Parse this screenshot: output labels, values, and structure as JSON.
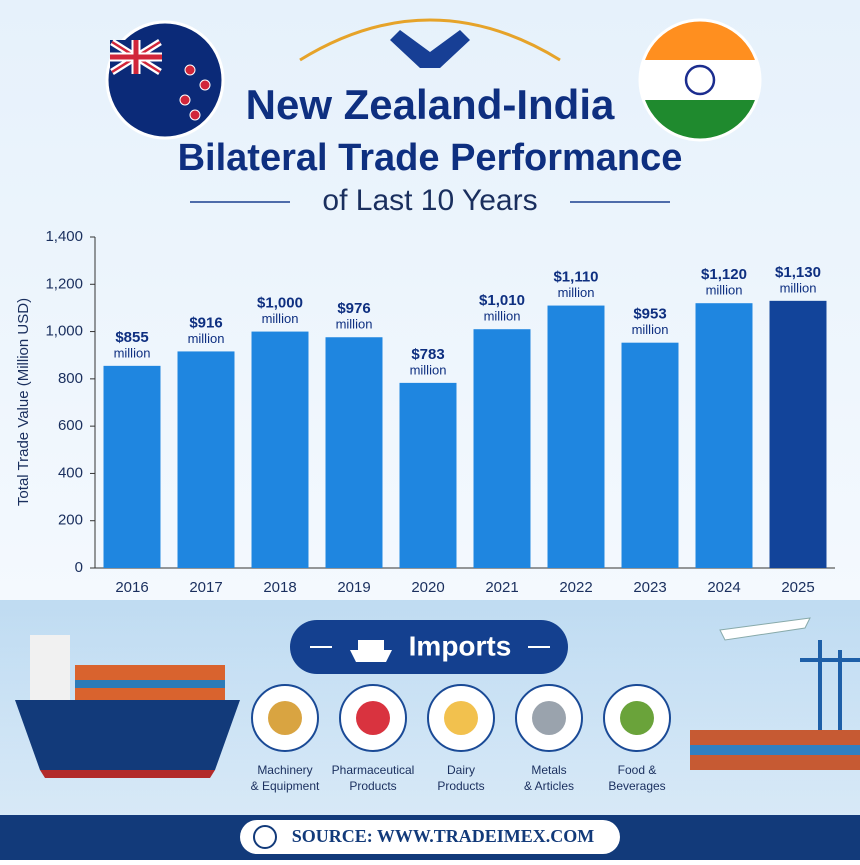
{
  "chart_data": {
    "type": "bar",
    "title": [
      "New Zealand-India",
      "Bilateral Trade Performance"
    ],
    "subtitle": "of Last 10 Years",
    "y_label": "Total Trade Value (Million USD)",
    "categories": [
      "2016",
      "2017",
      "2018",
      "2019",
      "2020",
      "2021",
      "2022",
      "2023",
      "2024",
      "2025"
    ],
    "values": [
      855,
      916,
      1000,
      976,
      783,
      1010,
      1110,
      953,
      1120,
      1130
    ],
    "value_labels": [
      "$855",
      "$916",
      "$1,000",
      "$976",
      "$783",
      "$1,010",
      "$1,110",
      "$953",
      "$1,120",
      "$1,130"
    ],
    "value_label_unit": "million",
    "colors": [
      "#1f86e0",
      "#1f86e0",
      "#1f86e0",
      "#1f86e0",
      "#1f86e0",
      "#1f86e0",
      "#1f86e0",
      "#1f86e0",
      "#1f86e0",
      "#12449a"
    ],
    "ylim": [
      0,
      1400
    ],
    "yticks": [
      0,
      200,
      400,
      600,
      800,
      {
        "value": 1000,
        "label": "1,000"
      },
      {
        "value": 1200,
        "label": "1,200"
      },
      {
        "value": 1400,
        "label": "1,400"
      }
    ],
    "grid": false
  },
  "imports": {
    "title": "Imports",
    "items": [
      [
        "Machinery",
        "& Equipment"
      ],
      [
        "Pharmaceutical",
        "Products"
      ],
      [
        "Dairy",
        "Products"
      ],
      [
        "Metals",
        "& Articles"
      ],
      [
        "Food &",
        "Beverages"
      ]
    ]
  },
  "source": "SOURCE: WWW.TRADEIMEX.COM"
}
